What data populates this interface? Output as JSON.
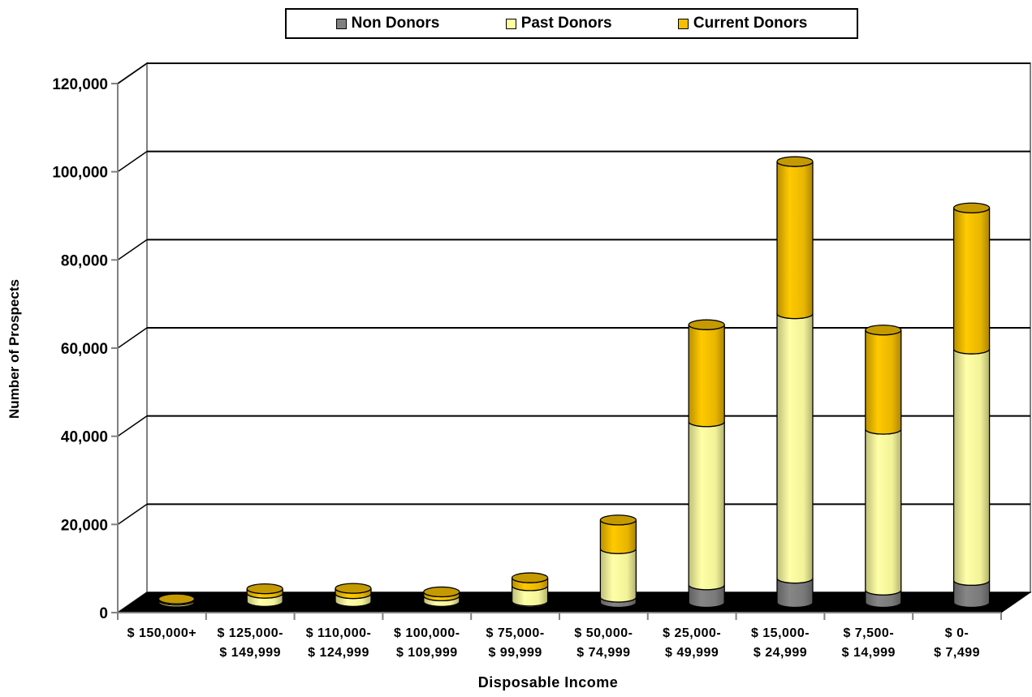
{
  "legend": {
    "items": [
      {
        "label": "Non Donors",
        "color": "#808080"
      },
      {
        "label": "Past Donors",
        "color": "#ffffa0"
      },
      {
        "label": "Current Donors",
        "color": "#f5c000"
      }
    ]
  },
  "chart_data": {
    "type": "bar",
    "stacked": true,
    "three_d": true,
    "title": "",
    "xlabel": "Disposable Income",
    "ylabel": "Number of Prospects",
    "ylim": [
      0,
      120000
    ],
    "yticks": [
      "0",
      "20,000",
      "40,000",
      "60,000",
      "80,000",
      "100,000",
      "120,000"
    ],
    "grid": true,
    "legend_position": "top",
    "categories": [
      [
        "$ 150,000+"
      ],
      [
        "$ 125,000-",
        "$ 149,999"
      ],
      [
        "$ 110,000-",
        "$ 124,999"
      ],
      [
        "$ 100,000-",
        "$ 109,999"
      ],
      [
        "$ 75,000-",
        "$ 99,999"
      ],
      [
        "$ 50,000-",
        "$ 74,999"
      ],
      [
        "$ 25,000-",
        "$ 49,999"
      ],
      [
        "$ 15,000-",
        "$ 24,999"
      ],
      [
        "$ 7,500-",
        "$ 14,999"
      ],
      [
        "$ 0-",
        "$ 7,499"
      ]
    ],
    "series": [
      {
        "name": "Non Donors",
        "color": "#808080",
        "values": [
          100,
          200,
          200,
          200,
          300,
          1200,
          4000,
          5500,
          2800,
          5000
        ]
      },
      {
        "name": "Past Donors",
        "color": "#ffffa0",
        "values": [
          400,
          1900,
          1800,
          1300,
          3500,
          11000,
          37000,
          60000,
          36500,
          52500
        ]
      },
      {
        "name": "Current Donors",
        "color": "#f5c000",
        "values": [
          300,
          1000,
          1200,
          900,
          1800,
          6500,
          22000,
          34500,
          22500,
          32000
        ]
      }
    ]
  }
}
